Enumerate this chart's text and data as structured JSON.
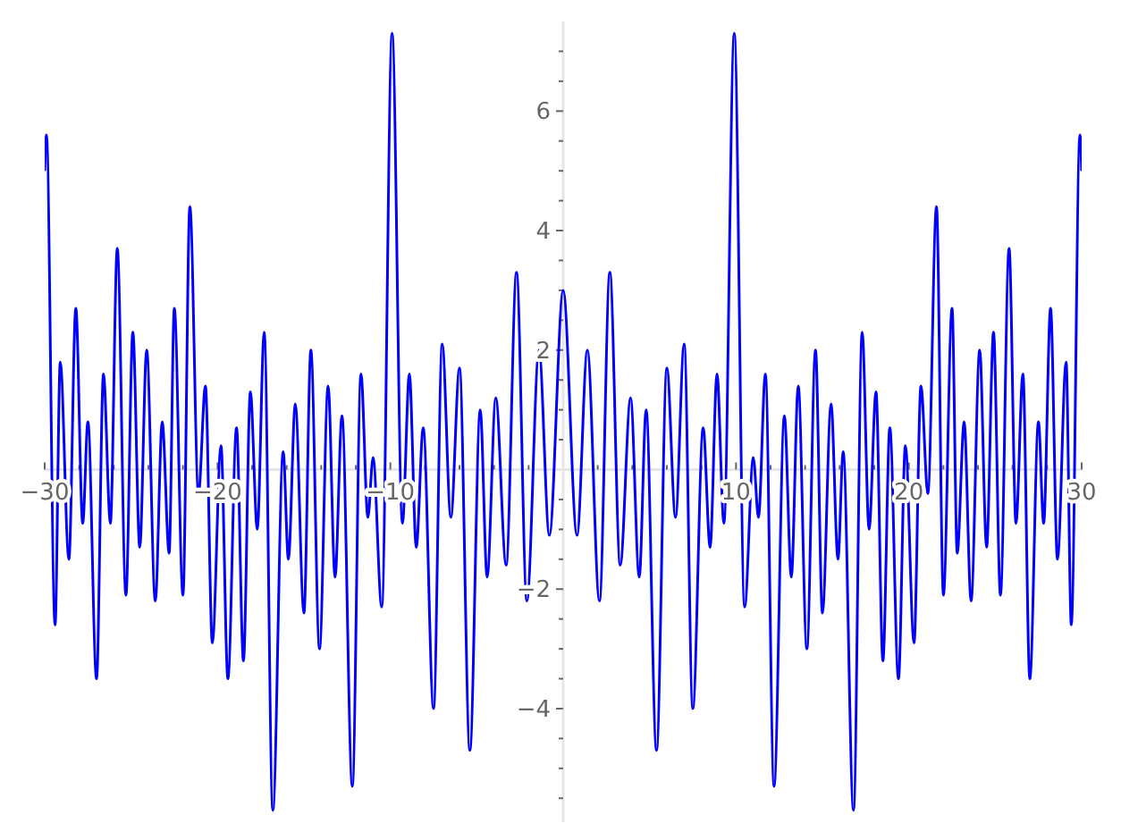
{
  "chart_data": {
    "type": "line",
    "color": "#0000ff",
    "x": [
      -30,
      -29.9,
      -29.4,
      -29.1,
      -28.6,
      -28.2,
      -27.8,
      -27.5,
      -27.0,
      -26.6,
      -26.2,
      -25.8,
      -25.3,
      -24.9,
      -24.5,
      -24.1,
      -23.6,
      -23.2,
      -22.8,
      -22.5,
      -22.0,
      -21.6,
      -21.1,
      -20.7,
      -20.3,
      -19.8,
      -19.4,
      -18.9,
      -18.5,
      -18.1,
      -17.7,
      -17.3,
      -16.8,
      -16.2,
      -15.9,
      -15.5,
      -15.0,
      -14.6,
      -14.1,
      -13.6,
      -13.2,
      -12.8,
      -12.2,
      -11.7,
      -11.3,
      -11.0,
      -10.5,
      -9.9,
      -9.3,
      -8.9,
      -8.5,
      -8.1,
      -7.5,
      -7.0,
      -6.5,
      -6.0,
      -5.4,
      -4.8,
      -4.4,
      -3.9,
      -3.3,
      -2.7,
      -2.1,
      -1.4,
      -0.8,
      0,
      0.8,
      1.4,
      2.1,
      2.7,
      3.3,
      3.9,
      4.4,
      4.8,
      5.4,
      6.0,
      6.5,
      7.0,
      7.5,
      8.1,
      8.5,
      8.9,
      9.3,
      9.9,
      10.5,
      11.0,
      11.3,
      11.7,
      12.2,
      12.8,
      13.2,
      13.6,
      14.1,
      14.6,
      15.0,
      15.5,
      15.9,
      16.2,
      16.8,
      17.3,
      17.7,
      18.1,
      18.5,
      18.9,
      19.4,
      19.8,
      20.3,
      20.7,
      21.1,
      21.6,
      22.0,
      22.5,
      22.8,
      23.2,
      23.6,
      24.1,
      24.5,
      24.9,
      25.3,
      25.8,
      26.2,
      26.6,
      27.0,
      27.5,
      27.8,
      28.2,
      28.6,
      29.1,
      29.4,
      29.9,
      30
    ],
    "values": [
      5.0,
      5.6,
      -2.6,
      1.8,
      -1.5,
      2.7,
      -0.9,
      0.8,
      -3.5,
      1.6,
      -0.9,
      3.7,
      -2.1,
      2.3,
      -1.3,
      2.0,
      -2.2,
      0.8,
      -1.4,
      2.7,
      -2.1,
      4.4,
      -0.4,
      1.4,
      -2.9,
      0.4,
      -3.5,
      0.7,
      -3.2,
      1.3,
      -1.0,
      2.3,
      -5.7,
      0.3,
      -1.5,
      1.1,
      -2.4,
      2.0,
      -3.0,
      1.4,
      -1.8,
      0.9,
      -5.3,
      1.6,
      -0.8,
      0.2,
      -2.3,
      7.3,
      -0.9,
      1.6,
      -1.3,
      0.7,
      -4.0,
      2.1,
      -0.8,
      1.7,
      -4.7,
      1.0,
      -1.8,
      1.2,
      -1.6,
      3.3,
      -2.2,
      2.0,
      -1.1,
      3.0,
      -1.1,
      2.0,
      -2.2,
      3.3,
      -1.6,
      1.2,
      -1.8,
      1.0,
      -4.7,
      1.7,
      -0.8,
      2.1,
      -4.0,
      0.7,
      -1.3,
      1.6,
      -0.9,
      7.3,
      -2.3,
      0.2,
      -0.8,
      1.6,
      -5.3,
      0.9,
      -1.8,
      1.4,
      -3.0,
      2.0,
      -2.4,
      1.1,
      -1.5,
      0.3,
      -5.7,
      2.3,
      -1.0,
      1.3,
      -3.2,
      0.7,
      -3.5,
      0.4,
      -2.9,
      1.4,
      -0.4,
      4.4,
      -2.1,
      2.7,
      -1.4,
      0.8,
      -2.2,
      2.0,
      -1.3,
      2.3,
      -2.1,
      3.7,
      -0.9,
      1.6,
      -3.5,
      0.8,
      -0.9,
      2.7,
      -1.5,
      1.8,
      -2.6,
      5.6,
      5.0
    ],
    "xlim": [
      -30,
      30
    ],
    "xticks": [
      -30,
      {
        "value": -28,
        "label": null
      },
      {
        "value": -26,
        "label": null
      },
      {
        "value": -24,
        "label": null
      },
      {
        "value": -22,
        "label": null
      },
      -20,
      {
        "value": -18,
        "label": null
      },
      {
        "value": -16,
        "label": null
      },
      {
        "value": -14,
        "label": null
      },
      {
        "value": -12,
        "label": null
      },
      -10,
      {
        "value": -8,
        "label": null
      },
      {
        "value": -6,
        "label": null
      },
      {
        "value": -4,
        "label": null
      },
      {
        "value": -2,
        "label": null
      },
      {
        "value": 2,
        "label": null
      },
      {
        "value": 4,
        "label": null
      },
      {
        "value": 6,
        "label": null
      },
      {
        "value": 8,
        "label": null
      },
      10,
      {
        "value": 12,
        "label": null
      },
      {
        "value": 14,
        "label": null
      },
      {
        "value": 16,
        "label": null
      },
      {
        "value": 18,
        "label": null
      },
      20,
      {
        "value": 22,
        "label": null
      },
      {
        "value": 24,
        "label": null
      },
      {
        "value": 26,
        "label": null
      },
      {
        "value": 28,
        "label": null
      },
      30
    ],
    "ylim": [
      -5.9,
      7.5
    ],
    "yticks": [
      {
        "value": -5.5,
        "label": null
      },
      {
        "value": -5,
        "label": null
      },
      {
        "value": -4.5,
        "label": null
      },
      -4,
      {
        "value": -3.5,
        "label": null
      },
      {
        "value": -3,
        "label": null
      },
      {
        "value": -2.5,
        "label": null
      },
      -2,
      {
        "value": -1.5,
        "label": null
      },
      {
        "value": -1,
        "label": null
      },
      {
        "value": -0.5,
        "label": null
      },
      {
        "value": 0.5,
        "label": null
      },
      {
        "value": 1,
        "label": null
      },
      {
        "value": 1.5,
        "label": null
      },
      2,
      {
        "value": 2.5,
        "label": null
      },
      {
        "value": 3,
        "label": null
      },
      {
        "value": 3.5,
        "label": null
      },
      4,
      {
        "value": 4.5,
        "label": null
      },
      {
        "value": 5,
        "label": null
      },
      {
        "value": 5.5,
        "label": null
      },
      6,
      {
        "value": 6.5,
        "label": null
      },
      {
        "value": 7,
        "label": null
      }
    ]
  }
}
